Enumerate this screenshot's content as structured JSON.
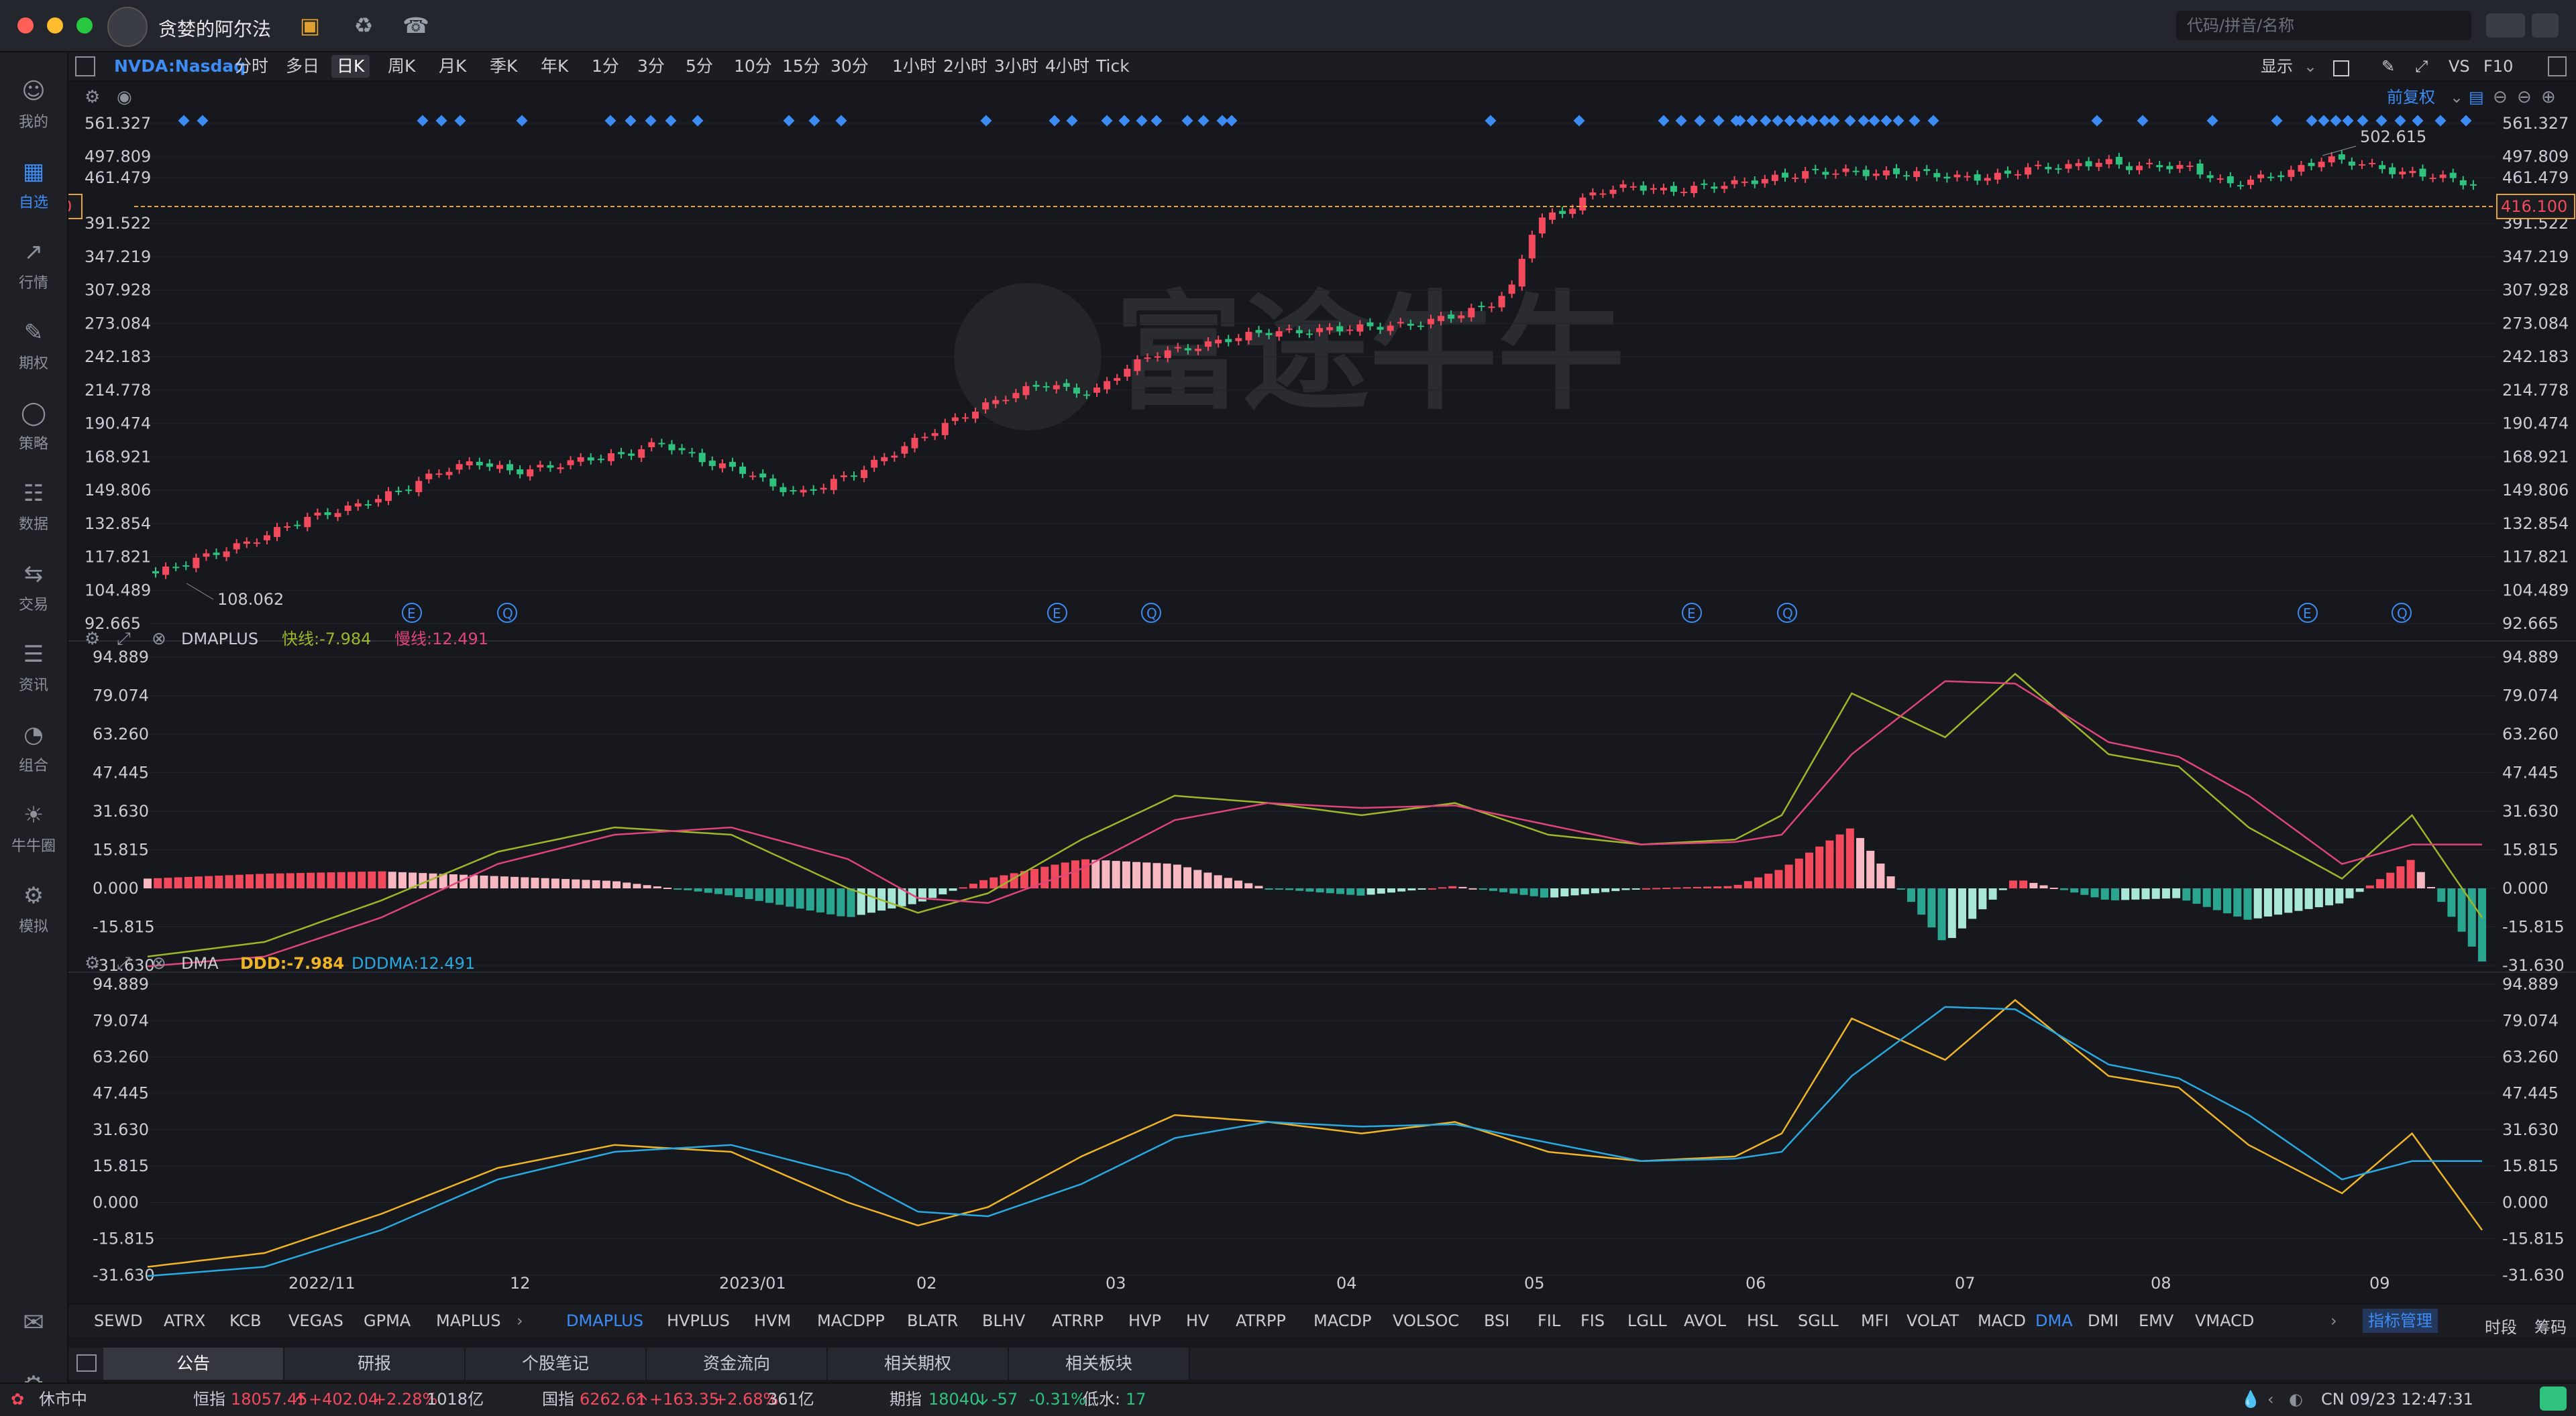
{
  "window": {
    "title": "贪婪的阿尔法",
    "search_placeholder": "代码/拼音/名称"
  },
  "sidebar": {
    "items": [
      {
        "label": "我的",
        "icon": "user-icon"
      },
      {
        "label": "自选",
        "icon": "watchlist-icon"
      },
      {
        "label": "行情",
        "icon": "market-icon"
      },
      {
        "label": "期权",
        "icon": "options-icon"
      },
      {
        "label": "策略",
        "icon": "strategy-icon"
      },
      {
        "label": "数据",
        "icon": "database-icon"
      },
      {
        "label": "交易",
        "icon": "trade-icon"
      },
      {
        "label": "资讯",
        "icon": "news-icon"
      },
      {
        "label": "组合",
        "icon": "portfolio-icon"
      },
      {
        "label": "牛牛圈",
        "icon": "community-icon"
      },
      {
        "label": "模拟",
        "icon": "simulate-icon"
      }
    ]
  },
  "toolbar": {
    "symbol": "NVDA:Nasdaq",
    "timeframes": [
      "分时",
      "多日",
      "日K",
      "周K",
      "月K",
      "季K",
      "年K",
      "1分",
      "3分",
      "5分",
      "10分",
      "15分",
      "30分",
      "1小时",
      "2小时",
      "3小时",
      "4小时",
      "Tick"
    ],
    "active_timeframe": "日K",
    "display_label": "显示",
    "vs_label": "VS",
    "f10_label": "F10",
    "adjust_label": "前复权"
  },
  "main_pane": {
    "price_axis": [
      "561.327",
      "497.809",
      "461.479",
      "391.522",
      "347.219",
      "307.928",
      "273.084",
      "242.183",
      "214.778",
      "190.474",
      "168.921",
      "149.806",
      "132.854",
      "117.821",
      "104.489",
      "92.665"
    ],
    "current_price": "416.100",
    "high_label": "502.615",
    "low_label": "108.062",
    "watermark": "富途牛牛",
    "event_markers": [
      "E",
      "Q",
      "E",
      "Q",
      "E",
      "Q",
      "E",
      "Q"
    ]
  },
  "dmaplus_pane": {
    "name": "DMAPLUS",
    "fast_label": "快线:-7.984",
    "slow_label": "慢线:12.491",
    "axis": [
      "94.889",
      "79.074",
      "63.260",
      "47.445",
      "31.630",
      "15.815",
      "0.000",
      "-15.815",
      "-31.630"
    ]
  },
  "dma_pane": {
    "name": "DMA",
    "ddd_label": "DDD:-7.984",
    "dddma_label": "DDDMA:12.491",
    "axis": [
      "94.889",
      "79.074",
      "63.260",
      "47.445",
      "31.630",
      "15.815",
      "0.000",
      "-15.815",
      "-31.630"
    ]
  },
  "x_axis": [
    "2022/11",
    "12",
    "2023/01",
    "02",
    "03",
    "04",
    "05",
    "06",
    "07",
    "08",
    "09"
  ],
  "indicator_bar": {
    "left_items": [
      "SEWD",
      "ATRX",
      "KCB",
      "VEGAS",
      "GPMA",
      "MAPLUS"
    ],
    "right_items": [
      "DMAPLUS",
      "HVPLUS",
      "HVM",
      "MACDPP",
      "BLATR",
      "BLHV",
      "ATRRP",
      "HVP",
      "HV",
      "ATRPP",
      "MACDP",
      "VOLSOC",
      "BSI",
      "FIL",
      "FIS",
      "LGLL",
      "AVOL",
      "HSL",
      "SGLL",
      "MFI",
      "VOLAT",
      "MACD",
      "DMA",
      "DMI",
      "EMV",
      "VMACD"
    ],
    "manage_label": "指标管理",
    "time_share_label": "时段",
    "chip_label": "筹码"
  },
  "bottom_tabs": [
    "公告",
    "研报",
    "个股笔记",
    "资金流向",
    "相关期权",
    "相关板块"
  ],
  "status_bar": {
    "market_state": "休市中",
    "hsi_name": "恒指",
    "hsi_value": "18057.45",
    "hsi_change": "+402.04",
    "hsi_pct": "+2.28%",
    "hsi_turnover": "1018亿",
    "cn_name": "国指",
    "cn_value": "6262.61",
    "cn_change": "+163.35",
    "cn_pct": "+2.68%",
    "cn_turnover": "361亿",
    "fut_name": "期指",
    "fut_value": "18040",
    "fut_change": "-57",
    "fut_pct": "-0.31%",
    "fut_lowwater_label": "低水:",
    "fut_lowwater_value": "17",
    "clock": "CN 09/23 12:47:31"
  },
  "colors": {
    "up": "#f2495c",
    "down": "#2ec27e",
    "accent": "#3d8cf5",
    "fast_line": "#9fb52a",
    "slow_line": "#e0447a",
    "ddd_line": "#f0b429",
    "dddma_line": "#2aa9e0"
  }
}
